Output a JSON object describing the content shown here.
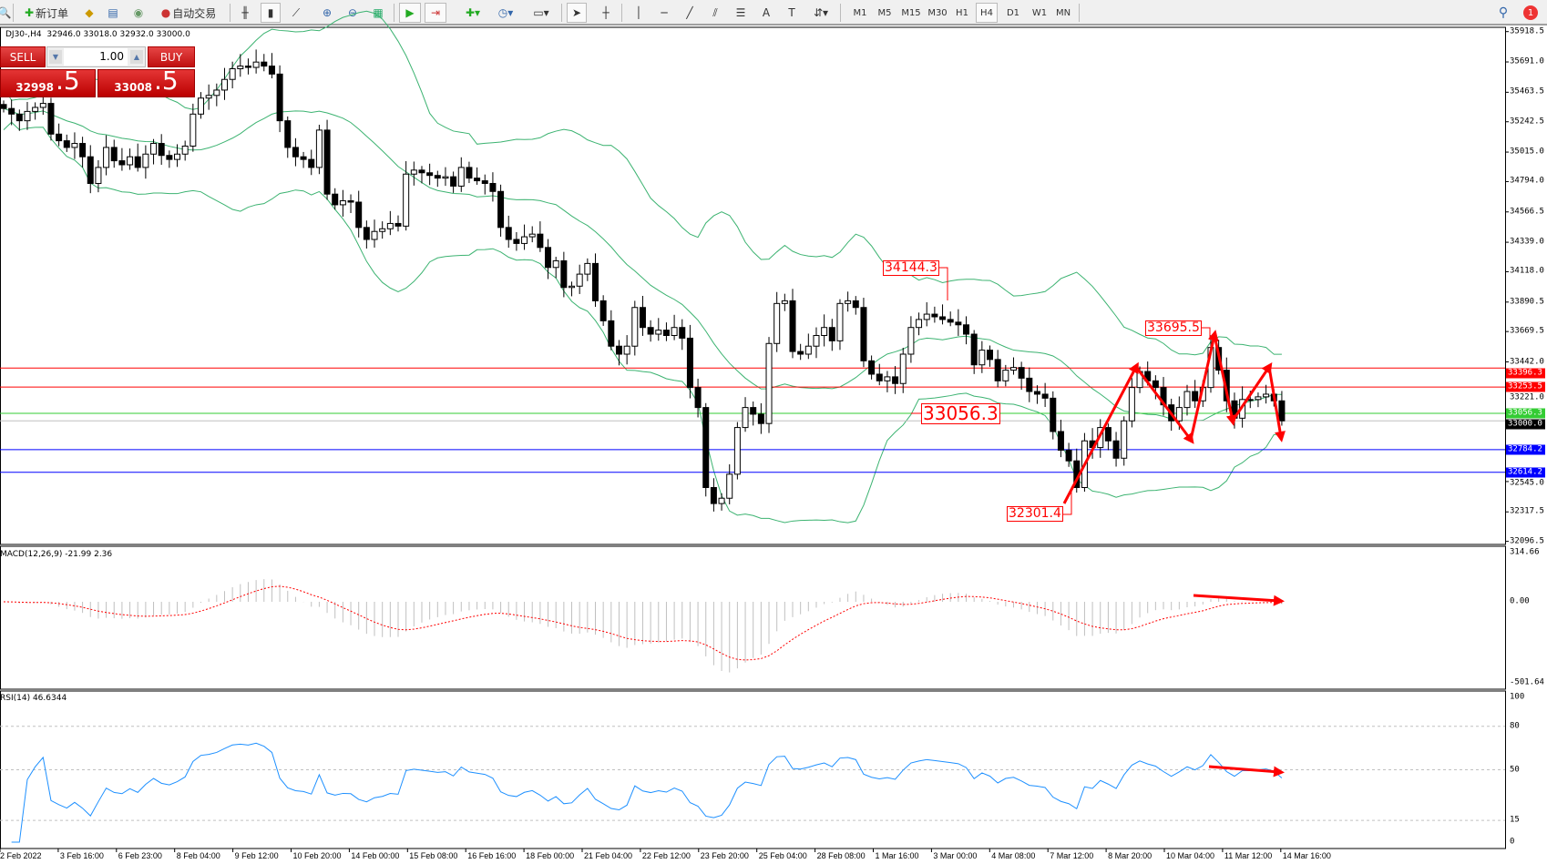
{
  "toolbar": {
    "new_order": "新订单",
    "auto_trading": "自动交易",
    "timeframes": [
      "M1",
      "M5",
      "M15",
      "M30",
      "H1",
      "H4",
      "D1",
      "W1",
      "MN"
    ],
    "active_timeframe": "H4",
    "notification_count": "1"
  },
  "chart": {
    "header": "DJ30-,H4  32946.0 33018.0 32932.0 33000.0",
    "one_click": {
      "sell": "SELL",
      "buy": "BUY",
      "lot": "1.00",
      "bid_main": "32998",
      "bid_pips": ".5",
      "ask_main": "33008",
      "ask_pips": ".5"
    },
    "price_axis": [
      "35918.5",
      "35691.0",
      "35463.5",
      "35242.5",
      "35015.0",
      "34794.0",
      "34566.5",
      "34339.0",
      "34118.0",
      "33890.5",
      "33669.5",
      "33442.0",
      "33221.0",
      "32545.0",
      "32317.5",
      "32096.5"
    ],
    "hlines": [
      {
        "price": "33396.3",
        "color": "#ff0000"
      },
      {
        "price": "33253.5",
        "color": "#ff0000"
      },
      {
        "price": "33056.3",
        "color": "#33cc33"
      },
      {
        "price": "33000.0",
        "color": "#000000",
        "line": "#c0c0c0"
      },
      {
        "price": "32784.2",
        "color": "#0000ff"
      },
      {
        "price": "32614.2",
        "color": "#0000ff"
      }
    ],
    "annotations": [
      "34144.3",
      "33695.5",
      "33056.3",
      "32301.4"
    ],
    "closes": [
      35342,
      35300,
      35250,
      35320,
      35350,
      35380,
      35150,
      35100,
      35050,
      35080,
      34980,
      34780,
      34900,
      35050,
      34950,
      34920,
      34980,
      34900,
      35000,
      35080,
      34990,
      34960,
      35000,
      35060,
      35300,
      35420,
      35440,
      35480,
      35560,
      35640,
      35660,
      35650,
      35690,
      35660,
      35600,
      35250,
      35050,
      34980,
      34960,
      34900,
      35180,
      34700,
      34620,
      34650,
      34640,
      34450,
      34360,
      34420,
      34440,
      34480,
      34460,
      34850,
      34880,
      34860,
      34840,
      34820,
      34830,
      34760,
      34900,
      34820,
      34800,
      34780,
      34720,
      34450,
      34360,
      34330,
      34380,
      34400,
      34300,
      34150,
      34200,
      34000,
      34010,
      34100,
      34180,
      33900,
      33750,
      33560,
      33500,
      33560,
      33850,
      33700,
      33650,
      33680,
      33640,
      33700,
      33620,
      33250,
      33100,
      32500,
      32380,
      32420,
      32600,
      32950,
      33100,
      33050,
      32980,
      33580,
      33880,
      33900,
      33520,
      33500,
      33560,
      33640,
      33700,
      33600,
      33880,
      33900,
      33850,
      33450,
      33350,
      33300,
      33330,
      33280,
      33500,
      33700,
      33760,
      33800,
      33780,
      33760,
      33740,
      33720,
      33650,
      33420,
      33530,
      33460,
      33300,
      33380,
      33400,
      33320,
      33220,
      33200,
      33170,
      32920,
      32780,
      32700,
      32500,
      32850,
      32800,
      32950,
      32850,
      32720,
      33000,
      33250,
      33370,
      33300,
      33250,
      33120,
      33000,
      33100,
      33220,
      33150,
      33250,
      33550,
      33380,
      33150,
      33020,
      33160,
      33160,
      33180,
      33200,
      33150,
      33000
    ],
    "band_color": "#3cb371"
  },
  "macd": {
    "label": "MACD(12,26,9) -21.99 2.36",
    "axis": [
      "314.66",
      "0.00",
      "-501.64"
    ],
    "signal_color": "#ff0000",
    "hist_color": "#c0c0c0"
  },
  "rsi": {
    "label": "RSI(14) 46.6344",
    "axis": [
      "100",
      "80",
      "50",
      "15",
      "0"
    ],
    "line_color": "#1e90ff"
  },
  "time_axis": [
    "2 Feb 2022",
    "3 Feb 16:00",
    "6 Feb 23:00",
    "8 Feb 04:00",
    "9 Feb 12:00",
    "10 Feb 20:00",
    "14 Feb 00:00",
    "15 Feb 08:00",
    "16 Feb 16:00",
    "18 Feb 00:00",
    "21 Feb 04:00",
    "22 Feb 12:00",
    "23 Feb 20:00",
    "25 Feb 04:00",
    "28 Feb 08:00",
    "1 Mar 16:00",
    "3 Mar 00:00",
    "4 Mar 08:00",
    "7 Mar 12:00",
    "8 Mar 20:00",
    "10 Mar 04:00",
    "11 Mar 12:00",
    "14 Mar 16:00"
  ]
}
